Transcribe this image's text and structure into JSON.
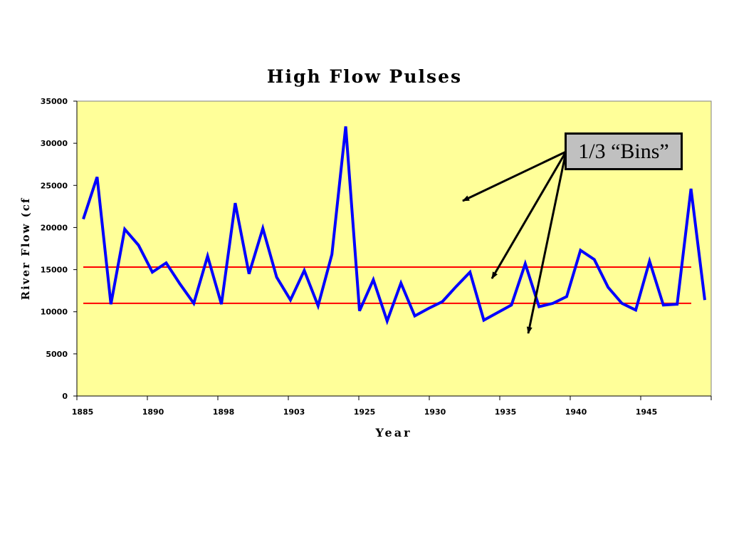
{
  "chart_data": {
    "type": "line",
    "title": "High Flow Pulses",
    "xlabel": "Year",
    "ylabel": "River Flow (cf",
    "ylim": [
      0,
      35000
    ],
    "yticks": [
      0,
      5000,
      10000,
      15000,
      20000,
      25000,
      30000,
      35000
    ],
    "xtick_labels": [
      "1885",
      "1890",
      "1898",
      "1903",
      "1925",
      "1930",
      "1935",
      "1940",
      "1945"
    ],
    "grid": false,
    "background_color": "#ffff99",
    "series": [
      {
        "color": "#0000ff",
        "values": [
          21000,
          26000,
          10900,
          19800,
          17900,
          14700,
          15800,
          13300,
          11000,
          16600,
          10900,
          22900,
          14500,
          19900,
          14100,
          11400,
          14900,
          10700,
          16800,
          32000,
          10100,
          13800,
          8900,
          13400,
          9500,
          10400,
          11200,
          13000,
          14700,
          9000,
          9900,
          10800,
          15700,
          10600,
          11000,
          11800,
          17300,
          16200,
          12900,
          11000,
          10200,
          16000,
          10800,
          10900,
          24600,
          11400
        ]
      }
    ],
    "reference_lines": [
      {
        "y": 15300,
        "color": "#ff0000"
      },
      {
        "y": 11000,
        "color": "#ff0000"
      }
    ],
    "annotation": {
      "text": "1/3 “Bins”"
    }
  }
}
